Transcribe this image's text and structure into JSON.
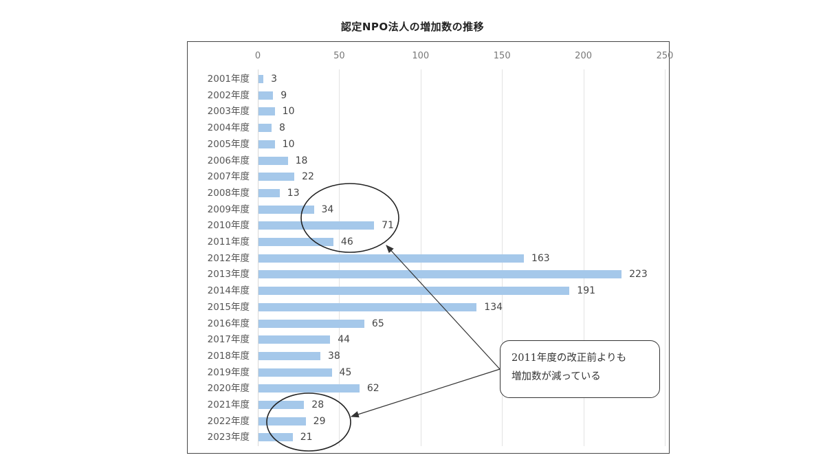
{
  "chart_data": {
    "type": "bar",
    "orientation": "horizontal",
    "title": "認定NPO法人の増加数の推移",
    "xlabel": "",
    "ylabel": "",
    "xlim": [
      0,
      250
    ],
    "x_ticks": [
      0,
      50,
      100,
      150,
      200,
      250
    ],
    "x_axis_position": "top",
    "grid": true,
    "legend": null,
    "bar_color": "#a5c8ea",
    "data_labels": true,
    "categories": [
      "2001年度",
      "2002年度",
      "2003年度",
      "2004年度",
      "2005年度",
      "2006年度",
      "2007年度",
      "2008年度",
      "2009年度",
      "2010年度",
      "2011年度",
      "2012年度",
      "2013年度",
      "2014年度",
      "2015年度",
      "2016年度",
      "2017年度",
      "2018年度",
      "2019年度",
      "2020年度",
      "2021年度",
      "2022年度",
      "2023年度"
    ],
    "values": [
      3,
      9,
      10,
      8,
      10,
      18,
      22,
      13,
      34,
      71,
      46,
      163,
      223,
      191,
      134,
      65,
      44,
      38,
      45,
      62,
      28,
      29,
      21
    ],
    "annotations": [
      {
        "type": "ellipse",
        "around": [
          "2009年度",
          "2010年度",
          "2011年度"
        ]
      },
      {
        "type": "ellipse",
        "around": [
          "2021年度",
          "2022年度",
          "2023年度"
        ]
      },
      {
        "type": "callout",
        "text_lines": [
          "2011年度の改正前よりも",
          "増加数が減っている"
        ],
        "arrows_to": [
          "ellipse-2009-2011",
          "ellipse-2021-2023"
        ]
      }
    ]
  },
  "title": "認定NPO法人の増加数の推移",
  "callout": {
    "line1": "2011年度の改正前よりも",
    "line2": "増加数が減っている"
  }
}
